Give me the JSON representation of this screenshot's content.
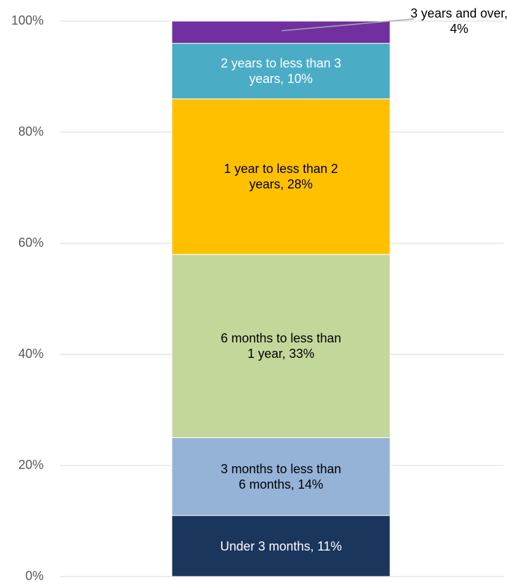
{
  "chart_data": {
    "type": "stacked_bar",
    "series": [
      {
        "color": "#1b365d",
        "values": [
          11
        ],
        "value_labels": [
          "Under 3 months, 11%"
        ]
      },
      {
        "color": "#95b3d7",
        "values": [
          14
        ],
        "value_labels": [
          "3 months to less than 6 months, 14%"
        ]
      },
      {
        "color": "#c4d79b",
        "values": [
          33
        ],
        "value_labels": [
          "6 months to less than 1 year, 33%"
        ]
      },
      {
        "color": "#ffc000",
        "values": [
          28
        ],
        "value_labels": [
          "1 year to less than 2 years, 28%"
        ]
      },
      {
        "color": "#4bacc6",
        "values": [
          10
        ],
        "value_labels": [
          "2 years to less than 3 years, 10%"
        ]
      },
      {
        "color": "#7030a0",
        "values": [
          4
        ],
        "value_labels": [
          "3 years and over, 4%"
        ]
      }
    ],
    "ylim": [
      0,
      100
    ],
    "yticks": [
      {
        "value": 0,
        "label": "0%"
      },
      {
        "value": 20,
        "label": "20%"
      },
      {
        "value": 40,
        "label": "40%"
      },
      {
        "value": 60,
        "label": "60%"
      },
      {
        "value": 80,
        "label": "80%"
      },
      {
        "value": 100,
        "label": "100%"
      }
    ],
    "grid": true
  }
}
